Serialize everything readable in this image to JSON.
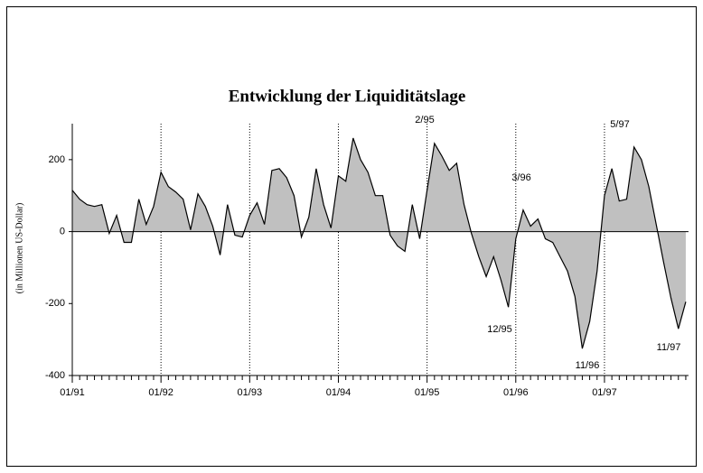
{
  "chart_data": {
    "type": "area",
    "title": "Entwicklung der Liquiditätslage",
    "y_label": "(in Millionen US-Dollar)",
    "categories": [
      "01/91",
      null,
      null,
      null,
      null,
      null,
      null,
      null,
      null,
      null,
      null,
      null,
      "01/92",
      null,
      null,
      null,
      null,
      null,
      null,
      null,
      null,
      null,
      null,
      null,
      "01/93",
      null,
      null,
      null,
      null,
      null,
      null,
      null,
      null,
      null,
      null,
      null,
      "01/94",
      null,
      null,
      null,
      null,
      null,
      null,
      null,
      null,
      null,
      null,
      null,
      "01/95",
      null,
      null,
      null,
      null,
      null,
      null,
      null,
      null,
      null,
      null,
      null,
      "01/96",
      null,
      null,
      null,
      null,
      null,
      null,
      null,
      null,
      null,
      null,
      null,
      "01/97",
      null,
      null,
      null,
      null,
      null,
      null,
      null,
      null,
      null,
      null,
      null
    ],
    "values": [
      115,
      90,
      75,
      70,
      75,
      -5,
      45,
      -30,
      -30,
      90,
      20,
      70,
      165,
      125,
      110,
      90,
      5,
      105,
      70,
      15,
      -65,
      75,
      -10,
      -15,
      45,
      80,
      20,
      170,
      175,
      150,
      100,
      -15,
      40,
      175,
      75,
      10,
      155,
      140,
      260,
      200,
      165,
      100,
      100,
      -10,
      -40,
      -55,
      75,
      -20,
      115,
      245,
      210,
      170,
      190,
      75,
      -5,
      -70,
      -125,
      -70,
      -135,
      -210,
      -20,
      60,
      15,
      35,
      -20,
      -30,
      -70,
      -110,
      -180,
      -325,
      -250,
      -110,
      100,
      175,
      85,
      90,
      235,
      200,
      125,
      20,
      -85,
      -185,
      -270,
      -195
    ],
    "color": "#c0c0c0",
    "line_color": "#000000",
    "ylim": [
      -400,
      300
    ],
    "yticks": [
      -400,
      -200,
      0,
      200
    ],
    "annotations": [
      "2/95",
      "3/96",
      "5/97",
      "12/95",
      "11/96",
      "11/97"
    ]
  }
}
